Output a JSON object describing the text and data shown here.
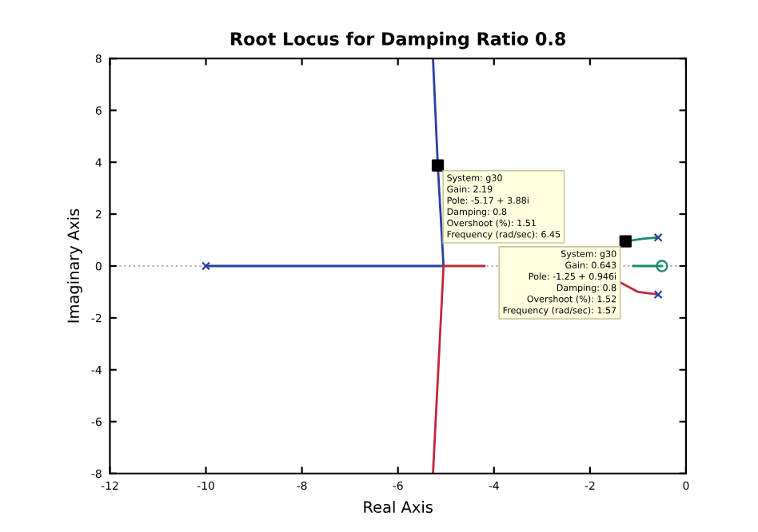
{
  "chart_data": {
    "type": "line",
    "title": "Root Locus for Damping Ratio 0.8",
    "xlabel": "Real Axis",
    "ylabel": "Imaginary Axis",
    "xlim": [
      -12,
      0
    ],
    "ylim": [
      -8,
      8
    ],
    "xticks": [
      -12,
      -10,
      -8,
      -6,
      -4,
      -2,
      0
    ],
    "yticks": [
      -8,
      -6,
      -4,
      -2,
      0,
      2,
      4,
      6,
      8
    ],
    "grid": false,
    "marker": "none",
    "line_style": "solid",
    "ref_lines": [
      {
        "axis": "y",
        "value": 0,
        "color": "#b0b0b0",
        "line_style": "dotted"
      }
    ],
    "series": [
      {
        "color": "#2a3fa0",
        "x": [
          -10,
          -5.05,
          -5.17,
          -5.27
        ],
        "values": [
          0,
          0,
          3.88,
          8
        ]
      },
      {
        "color": "#c0283a",
        "x": [
          -0.58,
          -1.0,
          -1.4,
          null,
          -4.2,
          -5.05,
          -5.27
        ],
        "values": [
          -1.1,
          -1.0,
          -0.6,
          null,
          0,
          0,
          -8
        ]
      },
      {
        "color": "#1a8a6a",
        "x": [
          -0.58,
          -0.9,
          -1.26,
          null,
          -1.1,
          -0.5
        ],
        "values": [
          1.1,
          1.05,
          0.95,
          null,
          0,
          0
        ]
      },
      {
        "type": "scatter",
        "marker": "circle",
        "color": "#1a8a6a",
        "x": [
          -0.5
        ],
        "values": [
          0
        ]
      },
      {
        "type": "scatter",
        "marker": "cross",
        "color": "#2a3fa0",
        "x": [
          -10,
          -0.58,
          -0.58
        ],
        "values": [
          0,
          1.1,
          -1.1
        ]
      },
      {
        "type": "scatter",
        "marker": "square",
        "color": "#000000",
        "x": [
          -5.17,
          -1.26
        ],
        "values": [
          3.88,
          0.95
        ]
      }
    ],
    "annotations": [
      {
        "text": "System: g30\nGain: 2.19\nPole: -5.17 + 3.88i\nDamping: 0.8\nOvershoot (%): 1.51\nFrequency (rad/sec): 6.45",
        "x": -5.17,
        "y": 3.88
      },
      {
        "text": "System: g30\nGain: 0.643\nPole: -1.25 + 0.946i\nDamping: 0.8\nOvershoot (%): 1.52\nFrequency (rad/sec): 1.57",
        "x": -1.26,
        "y": 0.95
      }
    ]
  }
}
